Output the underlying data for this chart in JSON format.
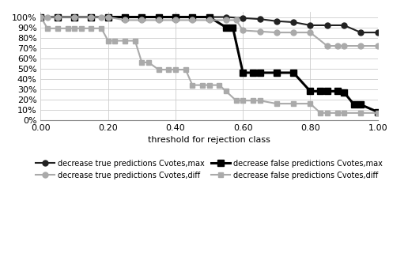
{
  "series": [
    {
      "key": "decrease_true_cvotes_max",
      "x": [
        0.0,
        0.05,
        0.1,
        0.15,
        0.2,
        0.25,
        0.3,
        0.35,
        0.4,
        0.45,
        0.5,
        0.55,
        0.6,
        0.65,
        0.7,
        0.75,
        0.8,
        0.85,
        0.9,
        0.95,
        1.0
      ],
      "y": [
        1.0,
        1.0,
        1.0,
        1.0,
        1.0,
        1.0,
        1.0,
        1.0,
        1.0,
        1.0,
        1.0,
        1.0,
        0.99,
        0.98,
        0.96,
        0.95,
        0.92,
        0.92,
        0.92,
        0.85,
        0.85
      ],
      "color": "#222222",
      "marker": "o",
      "linewidth": 1.5,
      "markersize": 5,
      "label": "decrease true predictions Cvotes,max"
    },
    {
      "key": "decrease_false_cvotes_max",
      "x": [
        0.0,
        0.05,
        0.1,
        0.15,
        0.2,
        0.25,
        0.3,
        0.35,
        0.4,
        0.45,
        0.5,
        0.55,
        0.57,
        0.6,
        0.63,
        0.65,
        0.7,
        0.75,
        0.8,
        0.83,
        0.85,
        0.88,
        0.9,
        0.93,
        0.95,
        1.0
      ],
      "y": [
        1.0,
        1.0,
        1.0,
        1.0,
        1.0,
        1.0,
        1.0,
        1.0,
        1.0,
        1.0,
        1.0,
        0.9,
        0.9,
        0.46,
        0.46,
        0.46,
        0.46,
        0.46,
        0.28,
        0.28,
        0.28,
        0.28,
        0.27,
        0.15,
        0.15,
        0.08
      ],
      "color": "#000000",
      "marker": "s",
      "linewidth": 2.2,
      "markersize": 6,
      "label": "decrease false predictions Cvotes,max"
    },
    {
      "key": "decrease_true_cvotes_diff",
      "x": [
        0.0,
        0.02,
        0.05,
        0.1,
        0.15,
        0.18,
        0.2,
        0.25,
        0.3,
        0.35,
        0.4,
        0.45,
        0.5,
        0.55,
        0.58,
        0.6,
        0.65,
        0.7,
        0.75,
        0.8,
        0.85,
        0.88,
        0.9,
        0.95,
        1.0
      ],
      "y": [
        1.0,
        1.0,
        1.0,
        1.0,
        1.0,
        1.0,
        1.0,
        0.97,
        0.97,
        0.97,
        0.97,
        0.97,
        0.97,
        0.97,
        0.97,
        0.87,
        0.86,
        0.85,
        0.85,
        0.85,
        0.72,
        0.72,
        0.72,
        0.72,
        0.72
      ],
      "color": "#aaaaaa",
      "marker": "o",
      "linewidth": 1.5,
      "markersize": 5,
      "label": "decrease true predictions Cvotes,diff"
    },
    {
      "key": "decrease_false_cvotes_diff",
      "x": [
        0.0,
        0.02,
        0.05,
        0.08,
        0.1,
        0.12,
        0.15,
        0.18,
        0.2,
        0.22,
        0.25,
        0.28,
        0.3,
        0.32,
        0.35,
        0.38,
        0.4,
        0.43,
        0.45,
        0.48,
        0.5,
        0.53,
        0.55,
        0.58,
        0.6,
        0.63,
        0.65,
        0.7,
        0.75,
        0.8,
        0.83,
        0.85,
        0.88,
        0.9,
        0.95,
        1.0
      ],
      "y": [
        1.0,
        0.89,
        0.89,
        0.89,
        0.89,
        0.89,
        0.89,
        0.89,
        0.77,
        0.77,
        0.77,
        0.77,
        0.56,
        0.56,
        0.49,
        0.49,
        0.49,
        0.49,
        0.34,
        0.34,
        0.34,
        0.34,
        0.28,
        0.19,
        0.19,
        0.19,
        0.19,
        0.16,
        0.16,
        0.16,
        0.07,
        0.07,
        0.07,
        0.07,
        0.07,
        0.07
      ],
      "color": "#aaaaaa",
      "marker": "s",
      "linewidth": 1.5,
      "markersize": 5,
      "label": "decrease false predictions Cvotes,diff"
    }
  ],
  "xlabel": "threshold for rejection class",
  "xlim": [
    0.0,
    1.0
  ],
  "ylim": [
    0.0,
    1.05
  ],
  "xticks": [
    0.0,
    0.2,
    0.4,
    0.6,
    0.8,
    1.0
  ],
  "yticks": [
    0.0,
    0.1,
    0.2,
    0.3,
    0.4,
    0.5,
    0.6,
    0.7,
    0.8,
    0.9,
    1.0
  ],
  "background_color": "#ffffff",
  "grid_color": "#cccccc",
  "legend_order": [
    0,
    2,
    1,
    3
  ]
}
